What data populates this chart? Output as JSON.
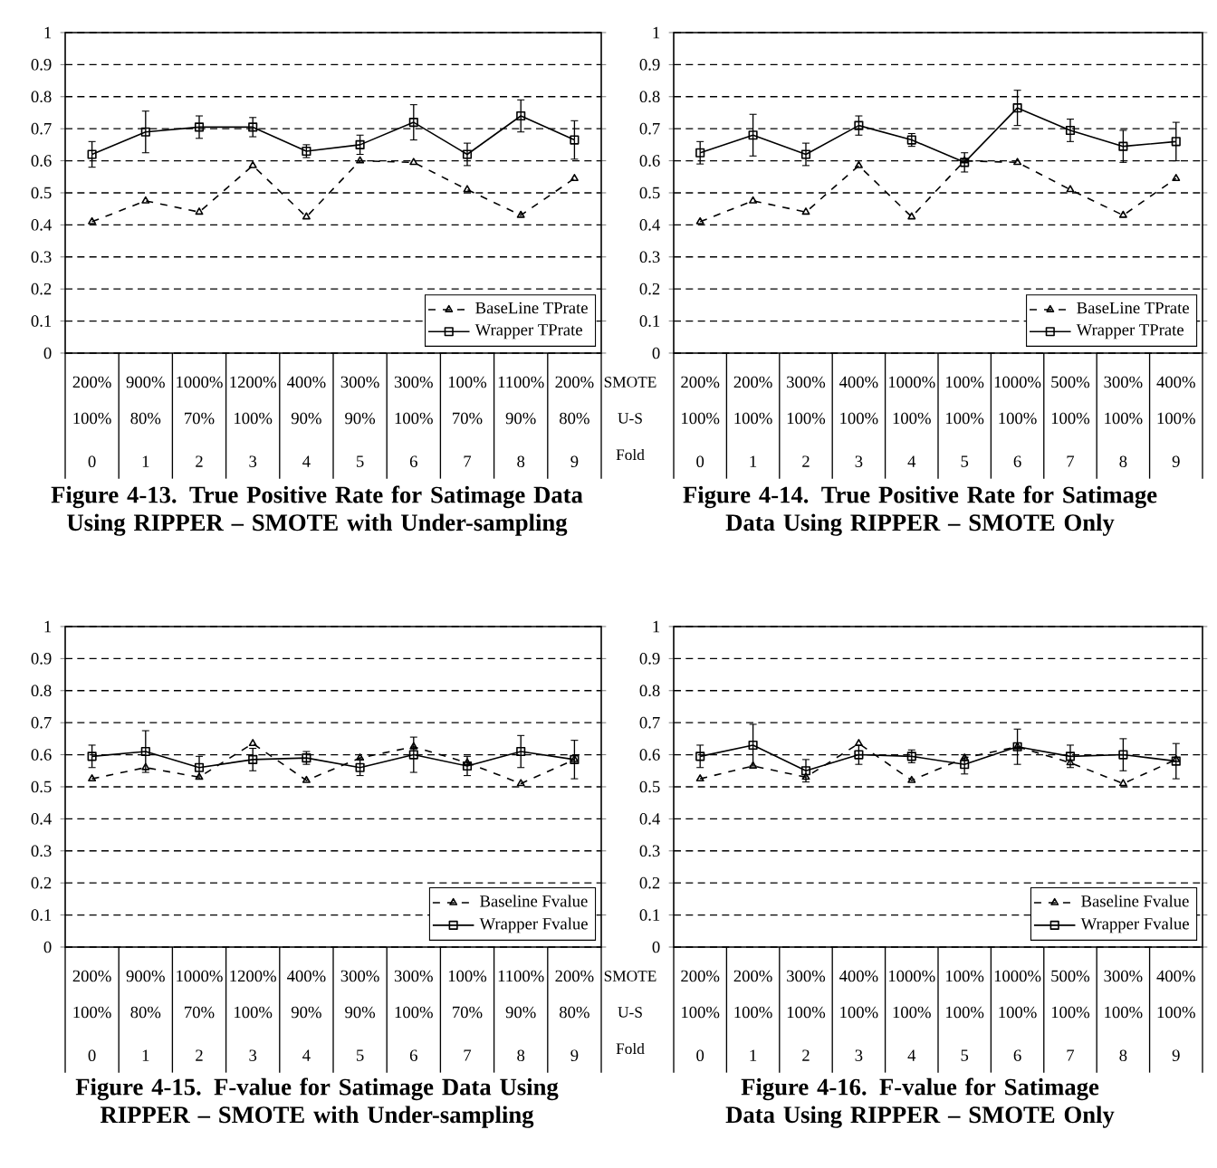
{
  "chart_data": [
    {
      "type": "line",
      "title": "Figure 4-13. True Positive Rate for Satimage Data Using RIPPER – SMOTE with Under-sampling",
      "categories": [
        "0",
        "1",
        "2",
        "3",
        "4",
        "5",
        "6",
        "7",
        "8",
        "9"
      ],
      "ylim": [
        0,
        1
      ],
      "yticks": [
        0,
        0.1,
        0.2,
        0.3,
        0.4,
        0.5,
        0.6,
        0.7,
        0.8,
        0.9,
        1
      ],
      "grid": "y",
      "legend": "bottom right",
      "series": [
        {
          "name": "BaseLine TPrate",
          "color": "#000000",
          "marker": "triangle",
          "line_style": "dashed",
          "values": [
            0.41,
            0.475,
            0.44,
            0.585,
            0.425,
            0.6,
            0.595,
            0.51,
            0.43,
            0.545
          ]
        },
        {
          "name": "Wrapper TPrate",
          "color": "#000000",
          "marker": "square",
          "line_style": "solid",
          "values": [
            0.62,
            0.69,
            0.705,
            0.705,
            0.63,
            0.65,
            0.72,
            0.62,
            0.74,
            0.665
          ],
          "errors": [
            0.04,
            0.065,
            0.035,
            0.03,
            0.02,
            0.03,
            0.055,
            0.035,
            0.05,
            0.06
          ]
        }
      ],
      "annotations": [
        "200%",
        "900%",
        "1000%",
        "1200%",
        "400%",
        "300%",
        "300%",
        "100%",
        "1100%",
        "200%",
        "100%",
        "80%",
        "70%",
        "100%",
        "90%",
        "90%",
        "100%",
        "70%",
        "90%",
        "80%"
      ]
    },
    {
      "type": "line",
      "title": "Figure 4-14. True Positive Rate for Satimage Data Using RIPPER – SMOTE Only",
      "categories": [
        "0",
        "1",
        "2",
        "3",
        "4",
        "5",
        "6",
        "7",
        "8",
        "9"
      ],
      "ylim": [
        0,
        1
      ],
      "yticks": [
        0,
        0.1,
        0.2,
        0.3,
        0.4,
        0.5,
        0.6,
        0.7,
        0.8,
        0.9,
        1
      ],
      "grid": "y",
      "legend": "bottom right",
      "series": [
        {
          "name": "BaseLine TPrate",
          "color": "#000000",
          "marker": "triangle",
          "line_style": "dashed",
          "values": [
            0.41,
            0.475,
            0.44,
            0.585,
            0.425,
            0.6,
            0.595,
            0.51,
            0.43,
            0.545
          ]
        },
        {
          "name": "Wrapper TPrate",
          "color": "#000000",
          "marker": "square",
          "line_style": "solid",
          "values": [
            0.625,
            0.68,
            0.62,
            0.71,
            0.665,
            0.595,
            0.765,
            0.695,
            0.645,
            0.66
          ],
          "errors": [
            0.035,
            0.065,
            0.035,
            0.03,
            0.02,
            0.03,
            0.055,
            0.035,
            0.05,
            0.06
          ]
        }
      ],
      "annotations": [
        "200%",
        "200%",
        "300%",
        "400%",
        "1000%",
        "100%",
        "1000%",
        "500%",
        "300%",
        "400%",
        "100%",
        "100%",
        "100%",
        "100%",
        "100%",
        "100%",
        "100%",
        "100%",
        "100%",
        "100%",
        "SMOTE",
        "U-S",
        "Fold"
      ]
    },
    {
      "type": "line",
      "title": "Figure 4-15. F-value for Satimage Data Using RIPPER – SMOTE with Under-sampling",
      "categories": [
        "0",
        "1",
        "2",
        "3",
        "4",
        "5",
        "6",
        "7",
        "8",
        "9"
      ],
      "ylim": [
        0,
        1
      ],
      "yticks": [
        0,
        0.1,
        0.2,
        0.3,
        0.4,
        0.5,
        0.6,
        0.7,
        0.8,
        0.9,
        1
      ],
      "grid": "y",
      "legend": "bottom right",
      "series": [
        {
          "name": "Baseline Fvalue",
          "color": "#000000",
          "marker": "triangle",
          "line_style": "dashed",
          "values": [
            0.525,
            0.56,
            0.53,
            0.635,
            0.52,
            0.59,
            0.625,
            0.575,
            0.51,
            0.585
          ]
        },
        {
          "name": "Wrapper Fvalue",
          "color": "#000000",
          "marker": "square",
          "line_style": "solid",
          "values": [
            0.595,
            0.61,
            0.56,
            0.585,
            0.59,
            0.56,
            0.6,
            0.565,
            0.61,
            0.585
          ],
          "errors": [
            0.035,
            0.065,
            0.035,
            0.035,
            0.02,
            0.025,
            0.055,
            0.03,
            0.05,
            0.06
          ]
        }
      ],
      "annotations": [
        "200%",
        "900%",
        "1000%",
        "1200%",
        "400%",
        "300%",
        "300%",
        "100%",
        "1100%",
        "200%",
        "100%",
        "80%",
        "70%",
        "100%",
        "90%",
        "90%",
        "100%",
        "70%",
        "90%",
        "80%"
      ]
    },
    {
      "type": "line",
      "title": "Figure 4-16. F-value for Satimage Data Using RIPPER – SMOTE Only",
      "categories": [
        "0",
        "1",
        "2",
        "3",
        "4",
        "5",
        "6",
        "7",
        "8",
        "9"
      ],
      "ylim": [
        0,
        1
      ],
      "yticks": [
        0,
        0.1,
        0.2,
        0.3,
        0.4,
        0.5,
        0.6,
        0.7,
        0.8,
        0.9,
        1
      ],
      "grid": "y",
      "legend": "bottom right",
      "series": [
        {
          "name": "Baseline Fvalue",
          "color": "#000000",
          "marker": "triangle",
          "line_style": "dashed",
          "values": [
            0.525,
            0.565,
            0.53,
            0.635,
            0.52,
            0.59,
            0.625,
            0.575,
            0.51,
            0.585
          ]
        },
        {
          "name": "Wrapper Fvalue",
          "color": "#000000",
          "marker": "square",
          "line_style": "solid",
          "values": [
            0.595,
            0.63,
            0.55,
            0.6,
            0.595,
            0.57,
            0.625,
            0.595,
            0.6,
            0.58
          ],
          "errors": [
            0.035,
            0.065,
            0.035,
            0.03,
            0.02,
            0.03,
            0.055,
            0.035,
            0.05,
            0.055
          ]
        }
      ],
      "annotations": [
        "200%",
        "200%",
        "300%",
        "400%",
        "1000%",
        "100%",
        "1000%",
        "500%",
        "300%",
        "400%",
        "100%",
        "100%",
        "100%",
        "100%",
        "100%",
        "100%",
        "100%",
        "100%",
        "100%",
        "100%",
        "SMOTE",
        "U-S",
        "Fold"
      ]
    }
  ]
}
